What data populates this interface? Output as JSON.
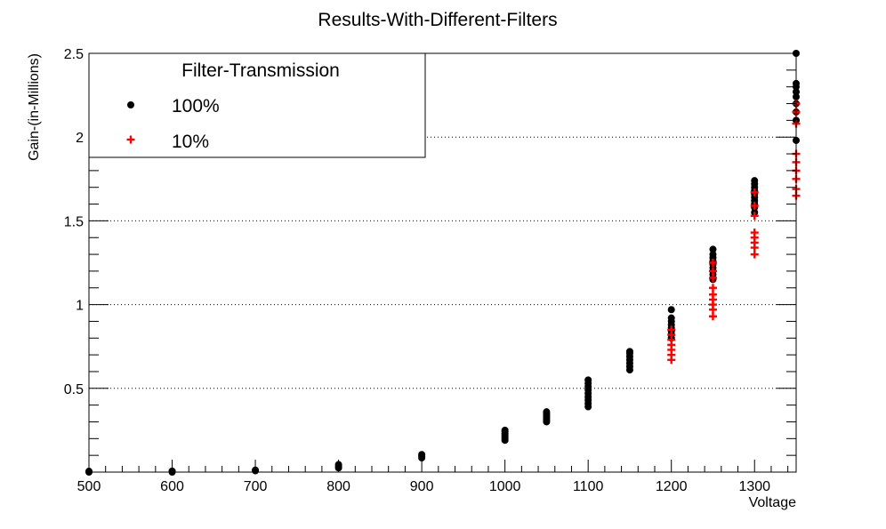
{
  "chart_data": {
    "type": "scatter",
    "title": "Results-With-Different-Filters",
    "xlabel": "Voltage",
    "ylabel": "Gain-(in-Millions)",
    "xlim": [
      500,
      1350
    ],
    "ylim": [
      0,
      2.5
    ],
    "x_ticks": [
      500,
      600,
      700,
      800,
      900,
      1000,
      1100,
      1200,
      1300
    ],
    "x_tick_labels": [
      "500",
      "600",
      "700",
      "800",
      "900",
      "1000",
      "1100",
      "1200",
      "1300"
    ],
    "y_ticks": [
      0.5,
      1,
      1.5,
      2,
      2.5
    ],
    "y_tick_labels": [
      "0.5",
      "1",
      "1.5",
      "2",
      "2.5"
    ],
    "grid": {
      "horizontal": true,
      "vertical": false,
      "style": "dotted"
    },
    "legend": {
      "title": "Filter-Transmission",
      "placement": "top-left",
      "entries": [
        "100%",
        "10%"
      ]
    },
    "series": [
      {
        "name": "100%",
        "marker": "circle",
        "color": "#000000",
        "points": [
          [
            500,
            0.0
          ],
          [
            500,
            0.005
          ],
          [
            600,
            0.0
          ],
          [
            600,
            0.006
          ],
          [
            700,
            0.008
          ],
          [
            700,
            0.012
          ],
          [
            800,
            0.025
          ],
          [
            800,
            0.035
          ],
          [
            800,
            0.045
          ],
          [
            900,
            0.085
          ],
          [
            900,
            0.095
          ],
          [
            900,
            0.105
          ],
          [
            1000,
            0.19
          ],
          [
            1000,
            0.2
          ],
          [
            1000,
            0.21
          ],
          [
            1000,
            0.22
          ],
          [
            1000,
            0.23
          ],
          [
            1000,
            0.24
          ],
          [
            1000,
            0.25
          ],
          [
            1050,
            0.3
          ],
          [
            1050,
            0.31
          ],
          [
            1050,
            0.32
          ],
          [
            1050,
            0.33
          ],
          [
            1050,
            0.34
          ],
          [
            1050,
            0.35
          ],
          [
            1050,
            0.36
          ],
          [
            1100,
            0.39
          ],
          [
            1100,
            0.41
          ],
          [
            1100,
            0.43
          ],
          [
            1100,
            0.45
          ],
          [
            1100,
            0.47
          ],
          [
            1100,
            0.49
          ],
          [
            1100,
            0.51
          ],
          [
            1100,
            0.53
          ],
          [
            1100,
            0.55
          ],
          [
            1150,
            0.61
          ],
          [
            1150,
            0.63
          ],
          [
            1150,
            0.65
          ],
          [
            1150,
            0.67
          ],
          [
            1150,
            0.69
          ],
          [
            1150,
            0.71
          ],
          [
            1150,
            0.72
          ],
          [
            1200,
            0.8
          ],
          [
            1200,
            0.82
          ],
          [
            1200,
            0.84
          ],
          [
            1200,
            0.86
          ],
          [
            1200,
            0.88
          ],
          [
            1200,
            0.9
          ],
          [
            1200,
            0.92
          ],
          [
            1200,
            0.97
          ],
          [
            1250,
            1.15
          ],
          [
            1250,
            1.18
          ],
          [
            1250,
            1.2
          ],
          [
            1250,
            1.22
          ],
          [
            1250,
            1.24
          ],
          [
            1250,
            1.26
          ],
          [
            1250,
            1.28
          ],
          [
            1250,
            1.3
          ],
          [
            1250,
            1.33
          ],
          [
            1300,
            1.55
          ],
          [
            1300,
            1.58
          ],
          [
            1300,
            1.6
          ],
          [
            1300,
            1.62
          ],
          [
            1300,
            1.64
          ],
          [
            1300,
            1.66
          ],
          [
            1300,
            1.68
          ],
          [
            1300,
            1.7
          ],
          [
            1300,
            1.72
          ],
          [
            1300,
            1.74
          ],
          [
            1350,
            1.98
          ],
          [
            1350,
            2.1
          ],
          [
            1350,
            2.15
          ],
          [
            1350,
            2.2
          ],
          [
            1350,
            2.24
          ],
          [
            1350,
            2.27
          ],
          [
            1350,
            2.3
          ],
          [
            1350,
            2.32
          ],
          [
            1350,
            2.5
          ]
        ]
      },
      {
        "name": "10%",
        "marker": "cross",
        "color": "#ff0000",
        "points": [
          [
            1200,
            0.67
          ],
          [
            1200,
            0.7
          ],
          [
            1200,
            0.73
          ],
          [
            1200,
            0.76
          ],
          [
            1200,
            0.79
          ],
          [
            1200,
            0.82
          ],
          [
            1200,
            0.85
          ],
          [
            1250,
            0.93
          ],
          [
            1250,
            0.97
          ],
          [
            1250,
            1.0
          ],
          [
            1250,
            1.03
          ],
          [
            1250,
            1.06
          ],
          [
            1250,
            1.1
          ],
          [
            1250,
            1.16
          ],
          [
            1250,
            1.2
          ],
          [
            1250,
            1.25
          ],
          [
            1300,
            1.3
          ],
          [
            1300,
            1.34
          ],
          [
            1300,
            1.37
          ],
          [
            1300,
            1.4
          ],
          [
            1300,
            1.43
          ],
          [
            1300,
            1.53
          ],
          [
            1300,
            1.59
          ],
          [
            1300,
            1.67
          ],
          [
            1350,
            1.65
          ],
          [
            1350,
            1.69
          ],
          [
            1350,
            1.75
          ],
          [
            1350,
            1.8
          ],
          [
            1350,
            1.85
          ],
          [
            1350,
            1.9
          ],
          [
            1350,
            2.08
          ],
          [
            1350,
            2.15
          ],
          [
            1350,
            2.2
          ]
        ]
      }
    ]
  }
}
